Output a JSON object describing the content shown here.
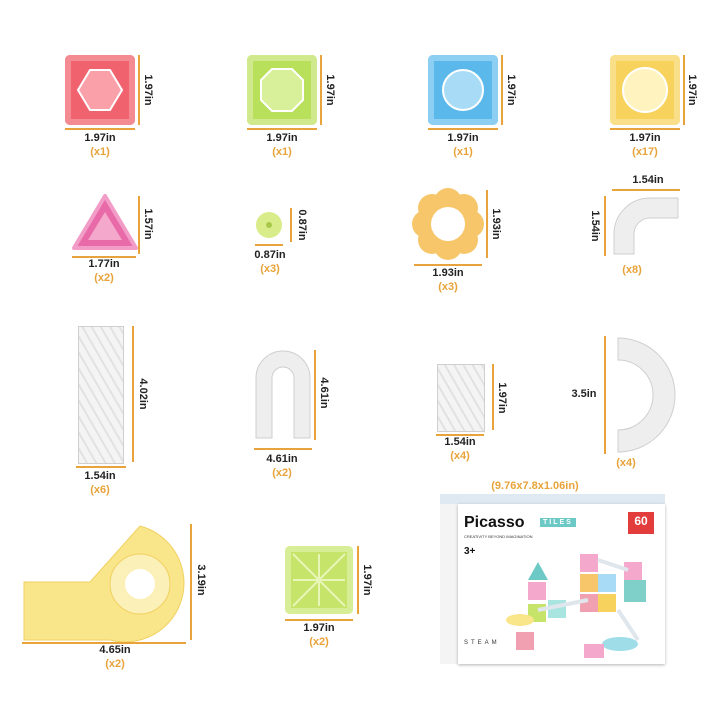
{
  "pieces": [
    {
      "name": "red-square-tile",
      "width": "1.97in",
      "height": "1.97in",
      "qty": "(x1)",
      "color": "#f0626e"
    },
    {
      "name": "green-square-tile",
      "width": "1.97in",
      "height": "1.97in",
      "qty": "(x1)",
      "color": "#b8e05a"
    },
    {
      "name": "blue-square-tile",
      "width": "1.97in",
      "height": "1.97in",
      "qty": "(x1)",
      "color": "#5ab8ea"
    },
    {
      "name": "yellow-square-tile",
      "width": "1.97in",
      "height": "1.97in",
      "qty": "(x17)",
      "color": "#f7d25c"
    },
    {
      "name": "pink-triangle-tile",
      "width": "1.77in",
      "height": "1.57in",
      "qty": "(x2)",
      "color": "#e86aa8"
    },
    {
      "name": "small-round-connector",
      "width": "0.87in",
      "height": "0.87in",
      "qty": "(x3)",
      "color": "#d8ec8a"
    },
    {
      "name": "flower-ring",
      "width": "1.93in",
      "height": "1.93in",
      "qty": "(x3)",
      "color": "#f7c66a"
    },
    {
      "name": "curved-track",
      "width": "1.54in",
      "height": "1.54in",
      "qty": "(x8)",
      "color": "#e8e8e8"
    },
    {
      "name": "long-tube",
      "width": "1.54in",
      "height": "4.02in",
      "qty": "(x6)",
      "color": "#eeeeee"
    },
    {
      "name": "arch-track",
      "width": "4.61in",
      "height": "4.61in",
      "qty": "(x2)",
      "color": "#eeeeee"
    },
    {
      "name": "short-tube",
      "width": "1.54in",
      "height": "1.97in",
      "qty": "(x4)",
      "color": "#eeeeee"
    },
    {
      "name": "half-circle-track",
      "width": "3.5in",
      "qty": "(x4)",
      "color": "#eeeeee"
    },
    {
      "name": "spiral-funnel",
      "width": "4.65in",
      "height": "3.19in",
      "qty": "(x2)",
      "color": "#f9e68a"
    },
    {
      "name": "green-square-base",
      "width": "1.97in",
      "height": "1.97in",
      "qty": "(x2)",
      "color": "#c6e46a"
    }
  ],
  "box": {
    "dims": "(9.76x7.8x1.06in)",
    "brand": "Picasso",
    "brand_sub": "TILES",
    "tagline": "CREATIVITY BEYOND IMAGINATION",
    "age": "3+",
    "pieces_count": "60",
    "steam": "STEAM"
  },
  "accent": "#e8a33a"
}
